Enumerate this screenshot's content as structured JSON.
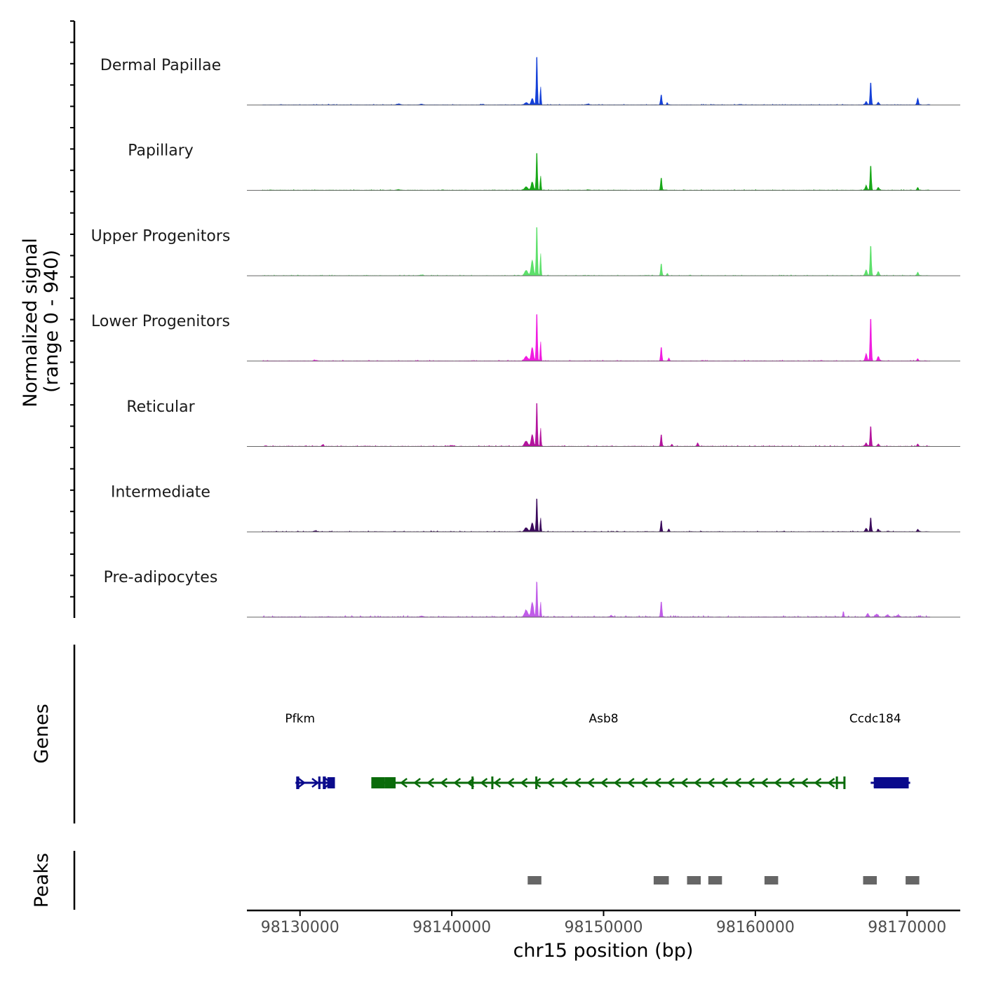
{
  "chart_data": {
    "type": "area",
    "title": "",
    "chromosome": "chr15",
    "xlabel": "chr15 position (bp)",
    "ylabel_line1": "Normalized signal",
    "ylabel_line2": "(range 0 - 940)",
    "genes_label": "Genes",
    "peaks_label": "Peaks",
    "xlim": [
      98126500,
      98173500
    ],
    "ylim": [
      0,
      940
    ],
    "x_ticks": [
      98130000,
      98140000,
      98150000,
      98160000,
      98170000
    ],
    "x_tick_labels": [
      "98130000",
      "98140000",
      "98150000",
      "98160000",
      "98170000"
    ],
    "tracks": [
      {
        "name": "Dermal Papillae",
        "color": "#1440d8",
        "peaks": [
          [
            98144900,
            40,
            150
          ],
          [
            98145300,
            110,
            110
          ],
          [
            98145600,
            930,
            55
          ],
          [
            98145850,
            330,
            45
          ],
          [
            98153800,
            190,
            60
          ],
          [
            98154200,
            35,
            60
          ],
          [
            98167600,
            420,
            60
          ],
          [
            98167300,
            60,
            90
          ],
          [
            98168100,
            45,
            90
          ],
          [
            98170700,
            120,
            70
          ],
          [
            98136500,
            18,
            150
          ],
          [
            98138000,
            12,
            150
          ],
          [
            98142000,
            10,
            150
          ],
          [
            98149000,
            12,
            150
          ],
          [
            98159000,
            10,
            150
          ]
        ],
        "baseline": 5
      },
      {
        "name": "Papillary",
        "color": "#18a818",
        "peaks": [
          [
            98144900,
            60,
            150
          ],
          [
            98145300,
            140,
            110
          ],
          [
            98145600,
            720,
            55
          ],
          [
            98145850,
            260,
            45
          ],
          [
            98153800,
            230,
            60
          ],
          [
            98167600,
            460,
            60
          ],
          [
            98167300,
            80,
            90
          ],
          [
            98168100,
            50,
            90
          ],
          [
            98170700,
            50,
            70
          ],
          [
            98136500,
            12,
            150
          ],
          [
            98149000,
            10,
            150
          ]
        ],
        "baseline": 5
      },
      {
        "name": "Upper Progenitors",
        "color": "#5de06b",
        "peaks": [
          [
            98144900,
            90,
            150
          ],
          [
            98145300,
            260,
            110
          ],
          [
            98145600,
            940,
            55
          ],
          [
            98145850,
            400,
            45
          ],
          [
            98153800,
            210,
            60
          ],
          [
            98154200,
            40,
            60
          ],
          [
            98167600,
            560,
            60
          ],
          [
            98167300,
            100,
            90
          ],
          [
            98168100,
            70,
            90
          ],
          [
            98170700,
            60,
            70
          ],
          [
            98138000,
            12,
            150
          ]
        ],
        "baseline": 5
      },
      {
        "name": "Lower Progenitors",
        "color": "#f01de0",
        "peaks": [
          [
            98144900,
            80,
            150
          ],
          [
            98145300,
            230,
            110
          ],
          [
            98145600,
            910,
            55
          ],
          [
            98145850,
            350,
            45
          ],
          [
            98153800,
            260,
            60
          ],
          [
            98154300,
            50,
            60
          ],
          [
            98167600,
            800,
            60
          ],
          [
            98167300,
            120,
            90
          ],
          [
            98168100,
            80,
            90
          ],
          [
            98170700,
            40,
            70
          ],
          [
            98131000,
            12,
            150
          ]
        ],
        "baseline": 6
      },
      {
        "name": "Reticular",
        "color": "#b3149d",
        "peaks": [
          [
            98144900,
            90,
            150
          ],
          [
            98145300,
            200,
            110
          ],
          [
            98145600,
            840,
            55
          ],
          [
            98145850,
            330,
            45
          ],
          [
            98153800,
            220,
            60
          ],
          [
            98154500,
            40,
            60
          ],
          [
            98156200,
            50,
            80
          ],
          [
            98167600,
            370,
            60
          ],
          [
            98167300,
            60,
            90
          ],
          [
            98168100,
            40,
            90
          ],
          [
            98170700,
            40,
            70
          ],
          [
            98131500,
            30,
            80
          ],
          [
            98140000,
            15,
            150
          ]
        ],
        "baseline": 6
      },
      {
        "name": "Intermediate",
        "color": "#3b0a5c",
        "peaks": [
          [
            98144900,
            70,
            150
          ],
          [
            98145300,
            150,
            110
          ],
          [
            98145600,
            640,
            55
          ],
          [
            98145850,
            250,
            45
          ],
          [
            98153800,
            200,
            60
          ],
          [
            98154300,
            50,
            60
          ],
          [
            98167600,
            260,
            60
          ],
          [
            98167300,
            60,
            90
          ],
          [
            98168100,
            40,
            90
          ],
          [
            98170700,
            40,
            70
          ],
          [
            98131000,
            15,
            150
          ]
        ],
        "baseline": 6
      },
      {
        "name": "Pre-adipocytes",
        "color": "#c05ce8",
        "peaks": [
          [
            98144900,
            110,
            150
          ],
          [
            98145300,
            250,
            110
          ],
          [
            98145600,
            680,
            55
          ],
          [
            98145850,
            260,
            45
          ],
          [
            98153800,
            280,
            60
          ],
          [
            98165800,
            100,
            50
          ],
          [
            98167400,
            60,
            90
          ],
          [
            98168000,
            50,
            120
          ],
          [
            98168700,
            40,
            120
          ],
          [
            98169400,
            30,
            120
          ],
          [
            98150500,
            30,
            100
          ],
          [
            98138000,
            15,
            150
          ]
        ],
        "baseline": 10
      }
    ],
    "genes": [
      {
        "name": "Pfkm",
        "color": "#0a0a8c",
        "start": 98129700,
        "end": 98132300,
        "strand": "+",
        "exons": [
          [
            98129750,
            98129950
          ],
          [
            98131200,
            98131350
          ],
          [
            98131500,
            98131700
          ],
          [
            98131800,
            98132300
          ]
        ],
        "label_x": 98130000
      },
      {
        "name": "Asb8",
        "color": "#0a6b0a",
        "start": 98134700,
        "end": 98165900,
        "strand": "-",
        "exons": [
          [
            98134700,
            98135600
          ],
          [
            98135600,
            98136300
          ],
          [
            98141300,
            98141400
          ],
          [
            98142600,
            98142700
          ],
          [
            98145500,
            98145600
          ],
          [
            98165300,
            98165400
          ],
          [
            98165800,
            98165900
          ]
        ],
        "label_x": 98150000
      },
      {
        "name": "Ccdc184",
        "color": "#0a0a8c",
        "start": 98167600,
        "end": 98170200,
        "strand": "+",
        "exons": [
          [
            98167800,
            98170100
          ]
        ],
        "label_x": 98167900
      }
    ],
    "peak_regions": [
      [
        98145000,
        98145900
      ],
      [
        98153300,
        98154300
      ],
      [
        98155500,
        98156400
      ],
      [
        98156900,
        98157800
      ],
      [
        98160600,
        98161500
      ],
      [
        98167100,
        98168000
      ],
      [
        98169900,
        98170800
      ]
    ]
  }
}
